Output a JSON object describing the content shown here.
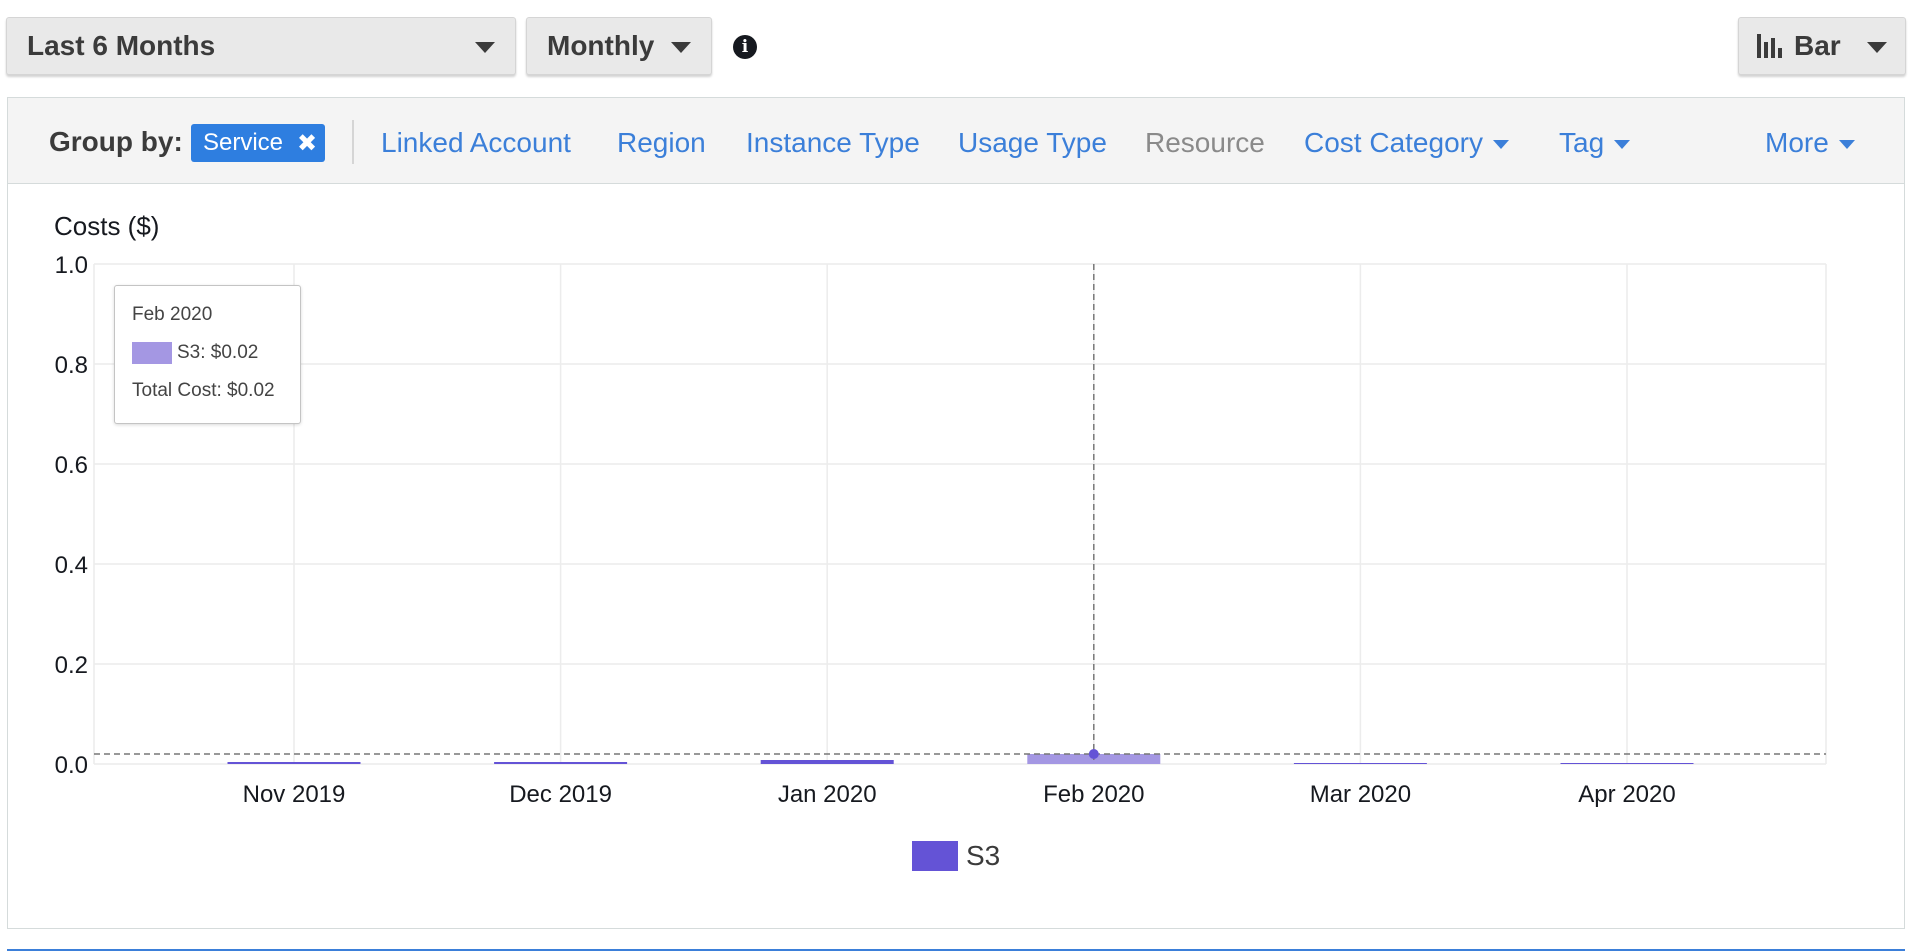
{
  "toolbar": {
    "date_range": "Last 6 Months",
    "granularity": "Monthly",
    "info_icon": "info-icon",
    "chart_type": "Bar"
  },
  "group_by": {
    "label": "Group by:",
    "active_chip": "Service",
    "remove_icon": "close-icon",
    "options": [
      {
        "label": "Linked Account",
        "enabled": true,
        "dropdown": false
      },
      {
        "label": "Region",
        "enabled": true,
        "dropdown": false
      },
      {
        "label": "Instance Type",
        "enabled": true,
        "dropdown": false
      },
      {
        "label": "Usage Type",
        "enabled": true,
        "dropdown": false
      },
      {
        "label": "Resource",
        "enabled": false,
        "dropdown": false
      },
      {
        "label": "Cost Category",
        "enabled": true,
        "dropdown": true
      },
      {
        "label": "Tag",
        "enabled": true,
        "dropdown": true
      }
    ],
    "more": "More"
  },
  "chart_data": {
    "type": "bar",
    "ylabel": "Costs ($)",
    "ylim": [
      0,
      1.0
    ],
    "yticks": [
      "1.0",
      "0.8",
      "0.6",
      "0.4",
      "0.2",
      "0.0"
    ],
    "categories": [
      "Nov 2019",
      "Dec 2019",
      "Jan 2020",
      "Feb 2020",
      "Mar 2020",
      "Apr 2020"
    ],
    "series": [
      {
        "name": "S3",
        "values": [
          0.004,
          0.004,
          0.008,
          0.02,
          0.002,
          0.002
        ],
        "color": "#6453d6"
      }
    ],
    "highlight_index": 3,
    "highlight_color": "#a497e3",
    "grid": true,
    "legend": "bottom-center"
  },
  "tooltip": {
    "month": "Feb 2020",
    "series_line": "S3: $0.02",
    "total_line": "Total Cost: $0.02"
  }
}
